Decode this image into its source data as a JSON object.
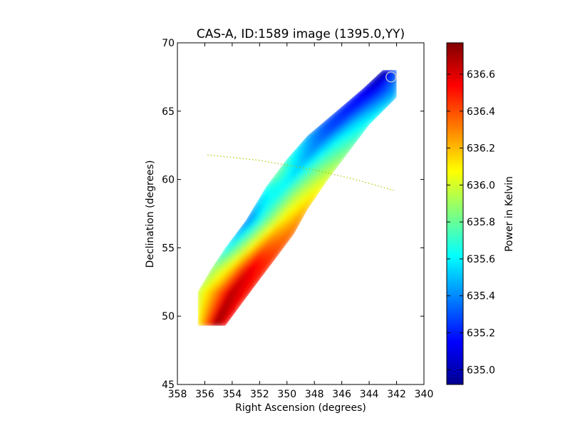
{
  "chart_data": {
    "type": "heatmap",
    "title": "CAS-A, ID:1589 image (1395.0,YY)",
    "xlabel": "Right Ascension (degrees)",
    "ylabel": "Declination (degrees)",
    "xlim": [
      358,
      340
    ],
    "ylim": [
      45,
      70
    ],
    "xticks": [
      "358",
      "356",
      "354",
      "352",
      "350",
      "348",
      "346",
      "344",
      "342",
      "340"
    ],
    "yticks": [
      "45",
      "50",
      "55",
      "60",
      "65",
      "70"
    ],
    "colorbar": {
      "label": "Power in Kelvin",
      "min": 634.92,
      "max": 636.77,
      "ticks": [
        "635.0",
        "635.2",
        "635.4",
        "635.6",
        "635.8",
        "636.0",
        "636.2",
        "636.4",
        "636.6"
      ],
      "colormap": "jet"
    },
    "swath": {
      "left_edge": [
        [
          356.5,
          49.3
        ],
        [
          356.5,
          51.8
        ],
        [
          355.5,
          53.5
        ],
        [
          354.5,
          55.0
        ],
        [
          353.0,
          57.0
        ],
        [
          351.5,
          59.5
        ],
        [
          350.0,
          61.5
        ],
        [
          348.5,
          63.2
        ],
        [
          346.5,
          64.9
        ],
        [
          344.5,
          66.6
        ],
        [
          343.0,
          68.0
        ]
      ],
      "right_edge": [
        [
          354.5,
          49.3
        ],
        [
          352.5,
          52.0
        ],
        [
          351.0,
          54.0
        ],
        [
          349.5,
          56.0
        ],
        [
          348.5,
          57.8
        ],
        [
          347.0,
          60.0
        ],
        [
          345.5,
          62.0
        ],
        [
          344.0,
          64.0
        ],
        [
          342.0,
          66.0
        ],
        [
          342.0,
          68.0
        ]
      ]
    },
    "values_across_swath": [
      {
        "along": 0.0,
        "profile": [
          636.05,
          636.4,
          636.77,
          636.5
        ]
      },
      {
        "along": 0.2,
        "profile": [
          635.85,
          636.1,
          636.6,
          636.45
        ]
      },
      {
        "along": 0.4,
        "profile": [
          635.3,
          635.75,
          636.1,
          636.3
        ]
      },
      {
        "along": 0.55,
        "profile": [
          635.85,
          635.55,
          635.85,
          636.05
        ]
      },
      {
        "along": 0.75,
        "profile": [
          635.35,
          635.25,
          635.55,
          635.7
        ]
      },
      {
        "along": 0.88,
        "profile": [
          635.15,
          635.15,
          635.35,
          635.55
        ]
      },
      {
        "along": 1.0,
        "profile": [
          634.95,
          635.0,
          635.15,
          635.3
        ]
      }
    ],
    "dotted_curve": {
      "color": "#a8c400",
      "points": [
        [
          355.8,
          61.8
        ],
        [
          352.0,
          61.4
        ],
        [
          348.0,
          60.7
        ],
        [
          345.0,
          60.0
        ],
        [
          342.2,
          59.2
        ]
      ]
    },
    "marker": {
      "ra": 342.4,
      "dec": 67.5,
      "shape": "circle"
    }
  }
}
